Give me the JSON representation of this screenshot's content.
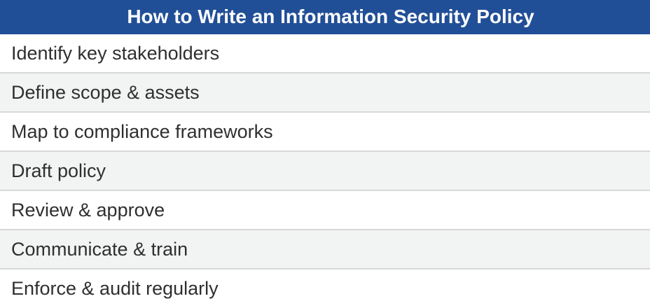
{
  "table": {
    "title": "How to Write an Information Security Policy",
    "steps": [
      "Identify key stakeholders",
      "Define scope & assets",
      "Map to compliance frameworks",
      "Draft policy",
      "Review & approve",
      "Communicate & train",
      "Enforce & audit regularly"
    ]
  },
  "colors": {
    "header_background": "#214f97",
    "header_text": "#ffffff",
    "alternate_row_background": "#f2f4f3",
    "divider": "#d7d9d8",
    "body_text": "#2f2f2f"
  }
}
